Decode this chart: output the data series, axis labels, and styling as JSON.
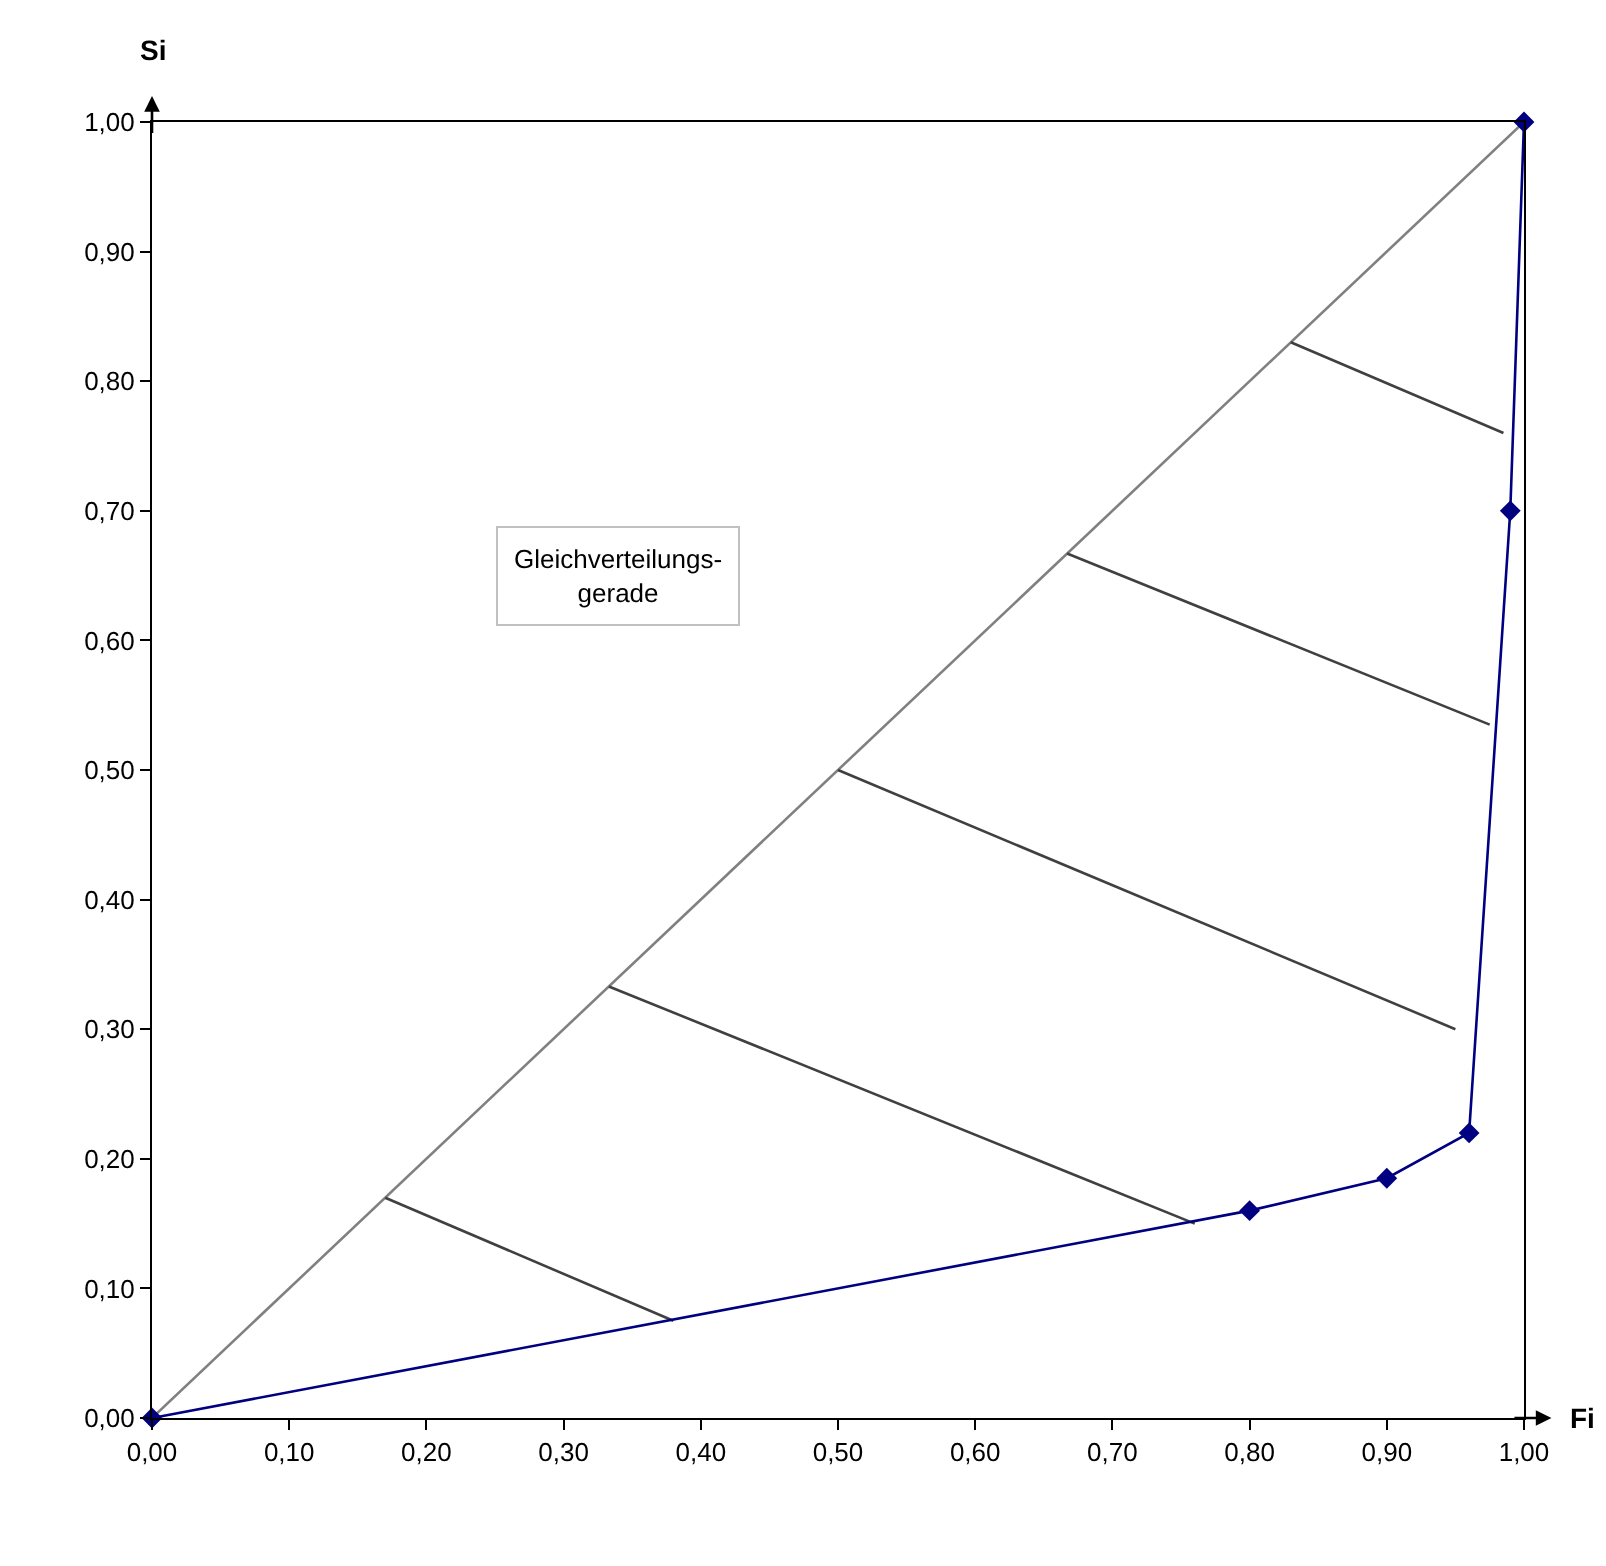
{
  "chart_data": {
    "type": "line",
    "xlabel": "Fi",
    "ylabel": "Si",
    "xlim": [
      0,
      1
    ],
    "ylim": [
      0,
      1
    ],
    "xticks": [
      {
        "value": 0,
        "label": "0,00"
      },
      {
        "value": 0.1,
        "label": "0,10"
      },
      {
        "value": 0.2,
        "label": "0,20"
      },
      {
        "value": 0.3,
        "label": "0,30"
      },
      {
        "value": 0.4,
        "label": "0,40"
      },
      {
        "value": 0.5,
        "label": "0,50"
      },
      {
        "value": 0.6,
        "label": "0,60"
      },
      {
        "value": 0.7,
        "label": "0,70"
      },
      {
        "value": 0.8,
        "label": "0,80"
      },
      {
        "value": 0.9,
        "label": "0,90"
      },
      {
        "value": 1,
        "label": "1,00"
      }
    ],
    "yticks": [
      {
        "value": 0,
        "label": "0,00"
      },
      {
        "value": 0.1,
        "label": "0,10"
      },
      {
        "value": 0.2,
        "label": "0,20"
      },
      {
        "value": 0.3,
        "label": "0,30"
      },
      {
        "value": 0.4,
        "label": "0,40"
      },
      {
        "value": 0.5,
        "label": "0,50"
      },
      {
        "value": 0.6,
        "label": "0,60"
      },
      {
        "value": 0.7,
        "label": "0,70"
      },
      {
        "value": 0.8,
        "label": "0,80"
      },
      {
        "value": 0.9,
        "label": "0,90"
      },
      {
        "value": 1,
        "label": "1,00"
      }
    ],
    "annotations": [
      "Gleichverteilungs-\ngerade"
    ],
    "series": [
      {
        "color": "#808080",
        "x": [
          0,
          1
        ],
        "values": [
          0,
          1
        ],
        "marker": "none"
      },
      {
        "color": "#404040",
        "x": [
          0.17,
          0.38
        ],
        "values": [
          0.17,
          0.075
        ],
        "marker": "none"
      },
      {
        "color": "#404040",
        "x": [
          0.333,
          0.76
        ],
        "values": [
          0.333,
          0.15
        ],
        "marker": "none"
      },
      {
        "color": "#404040",
        "x": [
          0.5,
          0.95
        ],
        "values": [
          0.5,
          0.3
        ],
        "marker": "none"
      },
      {
        "color": "#404040",
        "x": [
          0.667,
          0.975
        ],
        "values": [
          0.667,
          0.535
        ],
        "marker": "none"
      },
      {
        "color": "#404040",
        "x": [
          0.83,
          0.985
        ],
        "values": [
          0.83,
          0.76
        ],
        "marker": "none"
      },
      {
        "color": "#000080",
        "x": [
          0,
          0.8,
          0.9,
          0.96,
          0.99,
          1
        ],
        "values": [
          0,
          0.16,
          0.185,
          0.22,
          0.7,
          1
        ],
        "marker": "diamond"
      }
    ]
  }
}
